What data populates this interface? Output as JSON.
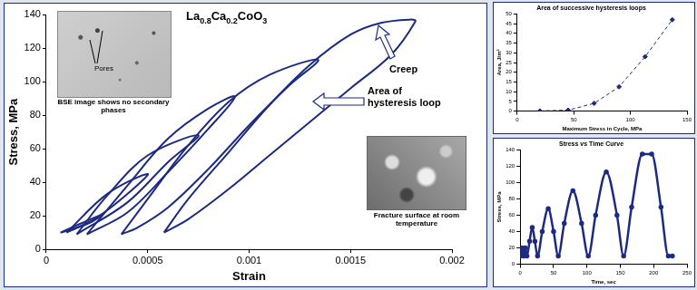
{
  "chart_data": [
    {
      "type": "line",
      "title": "La0.8Ca0.2CoO3",
      "x_label": "Strain",
      "y_label": "Stress, MPa",
      "xlim": [
        0,
        0.002
      ],
      "xticks": [
        0,
        0.0005,
        0.001,
        0.0015,
        0.002
      ],
      "ylim": [
        0,
        140
      ],
      "yticks": [
        0,
        20,
        40,
        60,
        80,
        100,
        120,
        140
      ],
      "grid": false,
      "color": "#1c2a83",
      "marker": "none",
      "line_style": "solid",
      "annotations": [
        "Creep",
        "Area of hysteresis loop"
      ],
      "insets": [
        {
          "caption": "BSE image shows no secondary phases",
          "label": "Pores"
        },
        {
          "caption": "Fracture surface at room temperature"
        }
      ],
      "series": [
        {
          "x": [
            7e-05,
            0.0002,
            0.00028,
            0.0002,
            7e-05
          ],
          "values": [
            10,
            17,
            21,
            15,
            10
          ]
        },
        {
          "x": [
            0.0001,
            0.0003,
            0.0005,
            0.0004,
            0.00025,
            0.0001
          ],
          "values": [
            10,
            33,
            45,
            33,
            19,
            10
          ]
        },
        {
          "x": [
            0.00015,
            0.0003,
            0.0005,
            0.00075,
            0.0006,
            0.0004,
            0.00015
          ],
          "values": [
            9,
            32,
            56,
            68,
            52,
            28,
            9
          ]
        },
        {
          "x": [
            0.0002,
            0.0004,
            0.0006,
            0.0008,
            0.00093,
            0.0008,
            0.0006,
            0.0004,
            0.0002
          ],
          "values": [
            9,
            38,
            66,
            84,
            91,
            72,
            46,
            22,
            9
          ]
        },
        {
          "x": [
            0.00037,
            0.0005,
            0.0007,
            0.0009,
            0.0011,
            0.00134,
            0.0012,
            0.001,
            0.0008,
            0.0006,
            0.00045,
            0.00037
          ],
          "values": [
            9,
            30,
            62,
            88,
            104,
            113,
            98,
            74,
            48,
            25,
            13,
            9
          ]
        },
        {
          "x": [
            0.00058,
            0.0007,
            0.0009,
            0.0011,
            0.0013,
            0.0015,
            0.00165,
            0.0018,
            0.00182,
            0.0017,
            0.0015,
            0.0013,
            0.0011,
            0.0009,
            0.0007,
            0.00058
          ],
          "values": [
            10,
            30,
            58,
            86,
            110,
            128,
            135,
            137,
            136,
            116,
            96,
            76,
            56,
            36,
            18,
            10
          ]
        }
      ]
    },
    {
      "type": "line",
      "title": "Area of successive hysteresis loops",
      "x_label": "Maximum Stress in Cycle, MPa",
      "y_label": "Area, J/m³",
      "xlim": [
        0,
        150
      ],
      "xticks": [
        0,
        50,
        100,
        150
      ],
      "ylim": [
        0,
        50
      ],
      "yticks": [
        0,
        5,
        10,
        15,
        20,
        25,
        30,
        35,
        40,
        45,
        50
      ],
      "grid": false,
      "color": "#1c2a83",
      "marker": "diamond",
      "line_style": "dashed",
      "series": [
        {
          "x": [
            20,
            45,
            68,
            90,
            113,
            137
          ],
          "values": [
            0.1,
            0.5,
            4,
            12.5,
            28,
            47
          ]
        }
      ]
    },
    {
      "type": "line",
      "title": "Stress vs Time Curve",
      "x_label": "Time, sec",
      "y_label": "Stress, MPa",
      "xlim": [
        0,
        250
      ],
      "xticks": [
        0,
        50,
        100,
        150,
        200,
        250
      ],
      "ylim": [
        0,
        140
      ],
      "yticks": [
        0,
        20,
        40,
        60,
        80,
        100,
        120,
        140
      ],
      "grid": false,
      "color": "#1c2a83",
      "marker": "circle",
      "line_style": "solid",
      "series": [
        {
          "x": [
            0,
            2.5,
            5,
            7.5,
            10,
            14,
            18,
            22,
            26,
            33,
            42,
            50,
            57,
            66,
            79,
            92,
            102,
            113,
            129,
            145,
            155,
            167,
            183,
            197,
            211,
            222,
            228
          ],
          "values": [
            10,
            20,
            10,
            20,
            10,
            28,
            45,
            28,
            10,
            40,
            68,
            40,
            10,
            50,
            90,
            50,
            10,
            60,
            113,
            60,
            10,
            70,
            135,
            135,
            70,
            10,
            10
          ]
        }
      ]
    }
  ]
}
